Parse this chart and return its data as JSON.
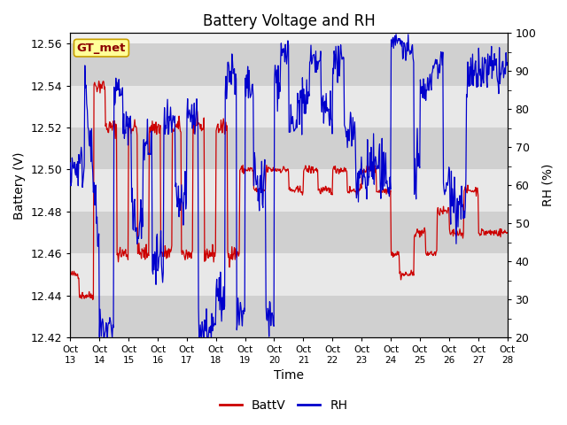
{
  "title": "Battery Voltage and RH",
  "xlabel": "Time",
  "ylabel_left": "Battery (V)",
  "ylabel_right": "RH (%)",
  "annotation": "GT_met",
  "ylim_left": [
    12.42,
    12.565
  ],
  "ylim_right": [
    20,
    100
  ],
  "yticks_left": [
    12.42,
    12.44,
    12.46,
    12.48,
    12.5,
    12.52,
    12.54,
    12.56
  ],
  "yticks_right": [
    20,
    30,
    40,
    50,
    60,
    70,
    80,
    90,
    100
  ],
  "xtick_labels": [
    "Oct 13",
    "Oct 14",
    "Oct 15",
    "Oct 16",
    "Oct 17",
    "Oct 18",
    "Oct 19",
    "Oct 20",
    "Oct 21",
    "Oct 22",
    "Oct 23",
    "Oct 24",
    "Oct 25",
    "Oct 26",
    "Oct 27",
    "Oct 28"
  ],
  "color_batt": "#cc0000",
  "color_rh": "#0000cc",
  "legend_labels": [
    "BattV",
    "RH"
  ],
  "bg_color": "#f0f0f0",
  "band_light": "#e8e8e8",
  "band_dark": "#d0d0d0",
  "title_fontsize": 12,
  "axis_fontsize": 10,
  "tick_fontsize": 9,
  "n_days": 15
}
